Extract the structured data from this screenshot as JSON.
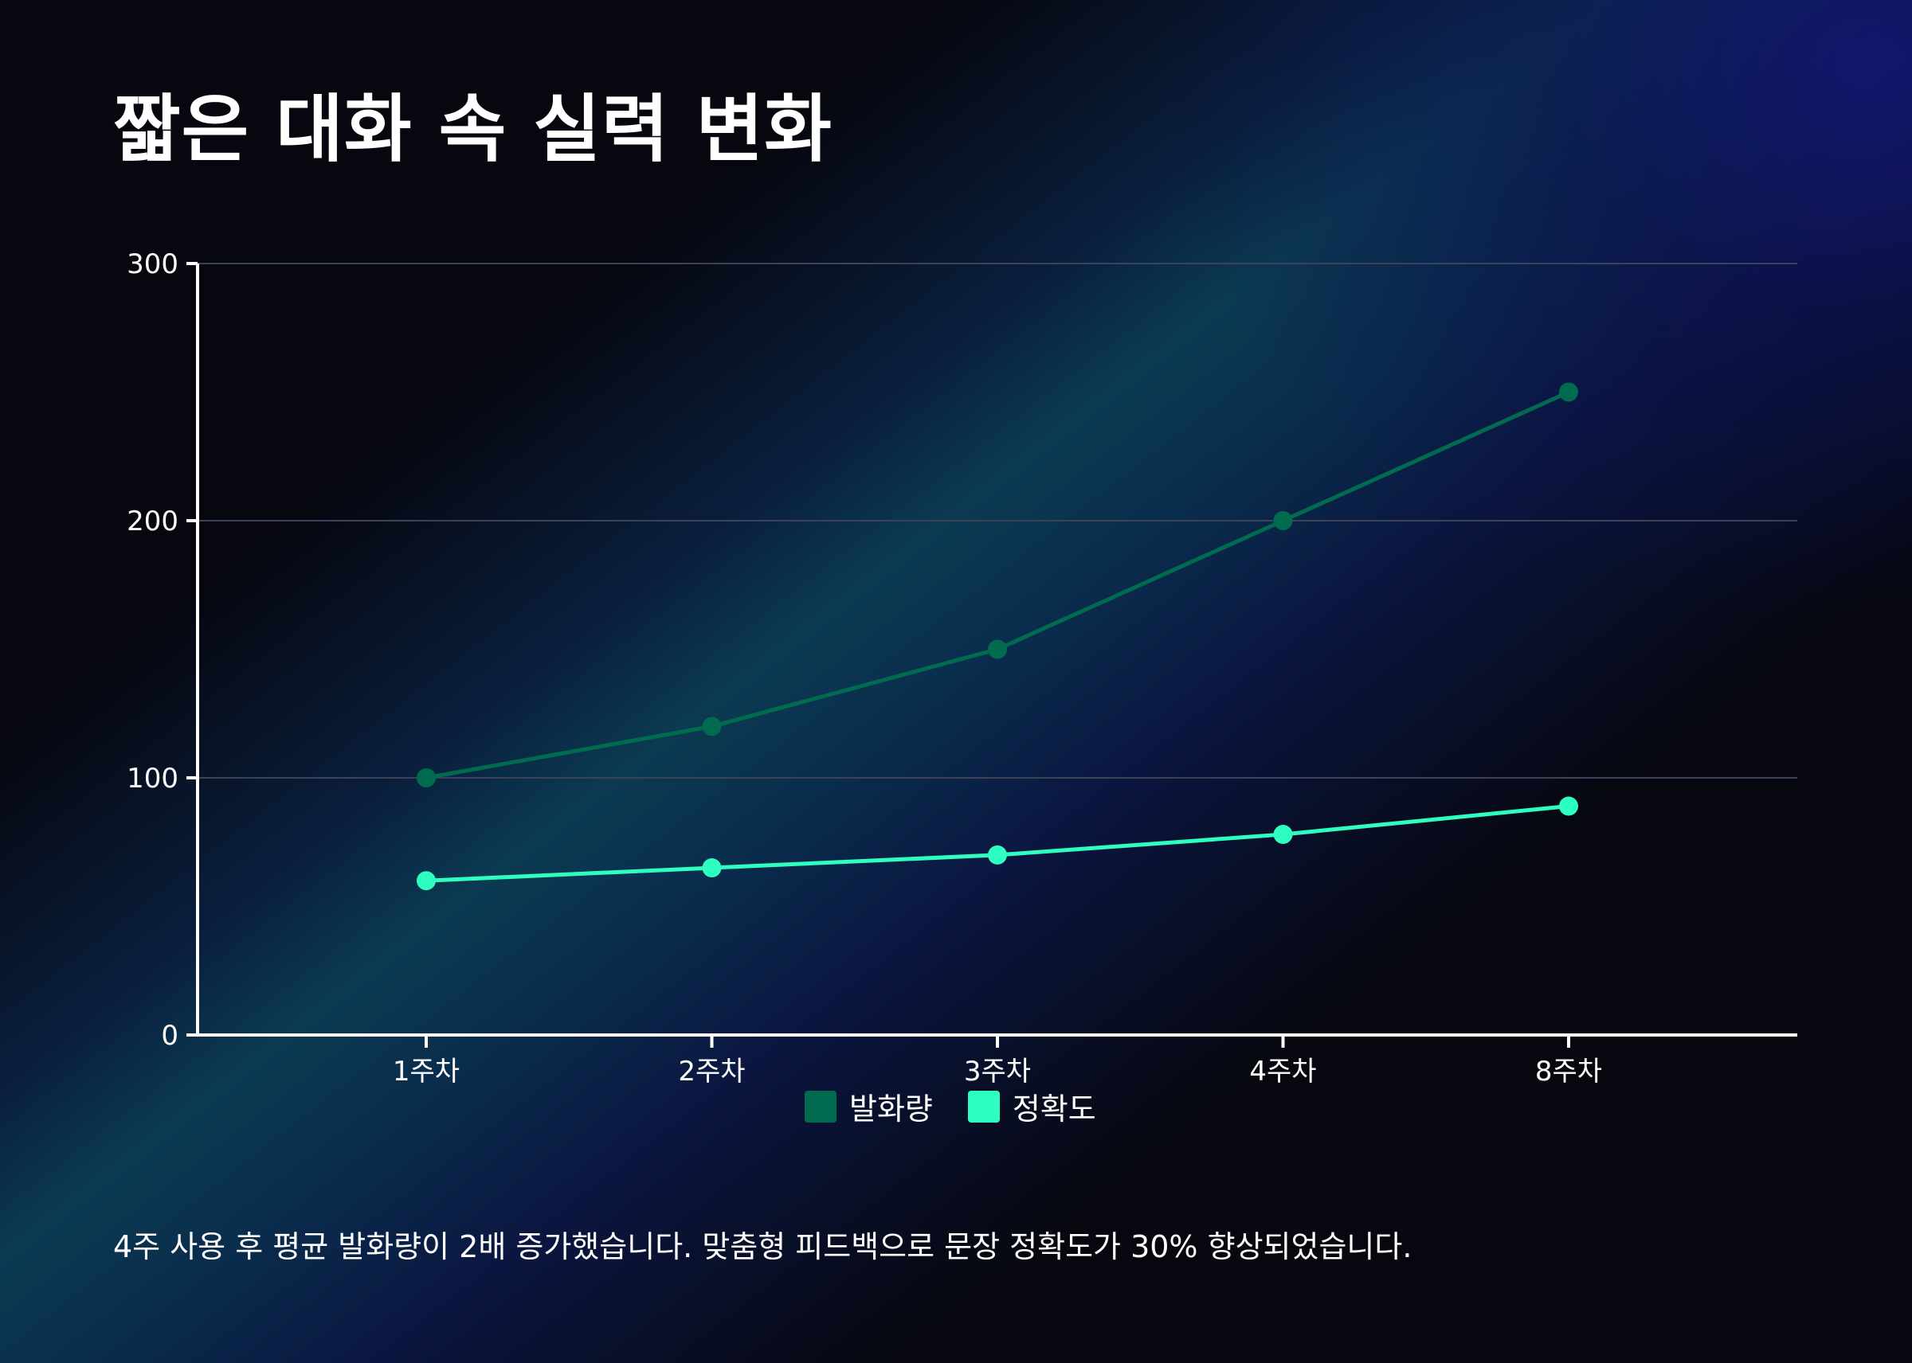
{
  "title": "짧은 대화 속 실력 변화",
  "caption": "4주 사용 후 평균 발화량이 2배 증가했습니다. 맞춤형 피드백으로 문장 정확도가 30% 향상되었습니다.",
  "colors": {
    "series_1": "#006b4f",
    "series_2": "#2effc0",
    "axis": "#ffffff",
    "grid": "#3c4258"
  },
  "chart_data": {
    "type": "line",
    "categories": [
      "1주차",
      "2주차",
      "3주차",
      "4주차",
      "8주차"
    ],
    "series": [
      {
        "name": "발화량",
        "values": [
          100,
          120,
          150,
          200,
          250
        ]
      },
      {
        "name": "정확도",
        "values": [
          60,
          65,
          70,
          78,
          89
        ]
      }
    ],
    "ylim": [
      0,
      300
    ],
    "yticks": [
      0,
      100,
      200,
      300
    ],
    "grid": true,
    "legend": "bottom"
  }
}
